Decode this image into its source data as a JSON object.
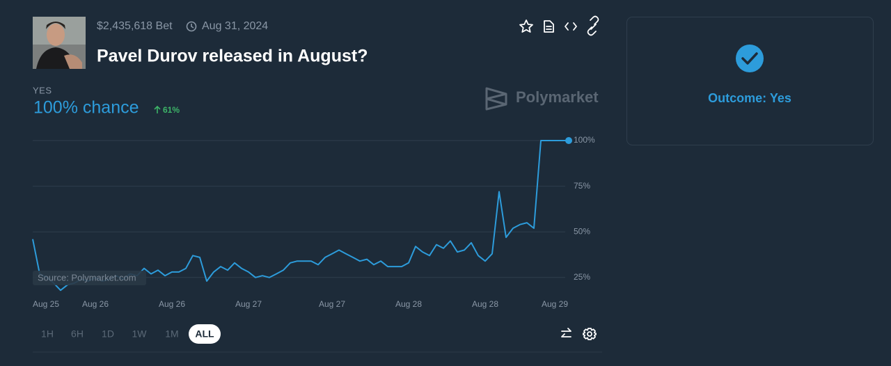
{
  "header": {
    "bet": "$2,435,618 Bet",
    "date": "Aug 31, 2024",
    "title": "Pavel Durov released in August?"
  },
  "chart_data": {
    "type": "line",
    "outcome": "YES",
    "chance": "100% chance",
    "change": "61%",
    "watermark": "Polymarket",
    "source": "Source: Polymarket.com",
    "series": [
      {
        "name": "YES",
        "color": "#2d9cdb",
        "values": [
          46,
          27,
          25,
          22,
          18,
          21,
          22,
          24,
          23,
          25,
          23,
          24,
          26,
          24,
          27,
          26,
          30,
          27,
          29,
          26,
          28,
          28,
          30,
          37,
          36,
          23,
          28,
          31,
          29,
          33,
          30,
          28,
          25,
          26,
          25,
          27,
          29,
          33,
          34,
          34,
          34,
          32,
          36,
          38,
          40,
          38,
          36,
          34,
          35,
          32,
          34,
          31,
          31,
          31,
          33,
          42,
          39,
          37,
          43,
          41,
          45,
          39,
          40,
          44,
          37,
          34,
          38,
          72,
          47,
          52,
          54,
          55,
          52,
          100,
          100,
          100,
          100,
          100
        ]
      }
    ],
    "xlim": [
      0,
      77
    ],
    "xticks": [
      {
        "value": 2,
        "label": "Aug 25"
      },
      {
        "value": 9,
        "label": "Aug 26"
      },
      {
        "value": 20,
        "label": "Aug 26"
      },
      {
        "value": 31,
        "label": "Aug 27"
      },
      {
        "value": 43,
        "label": "Aug 27"
      },
      {
        "value": 54,
        "label": "Aug 28"
      },
      {
        "value": 65,
        "label": "Aug 28"
      },
      {
        "value": 75,
        "label": "Aug 29"
      }
    ],
    "ylim": [
      15,
      100
    ],
    "yticks": [
      {
        "value": 25,
        "label": "25%"
      },
      {
        "value": 50,
        "label": "50%"
      },
      {
        "value": 75,
        "label": "75%"
      },
      {
        "value": 100,
        "label": "100%"
      }
    ],
    "grid": true
  },
  "range_buttons": [
    "1H",
    "6H",
    "1D",
    "1W",
    "1M",
    "ALL"
  ],
  "selected_range": "ALL",
  "outcome_panel": {
    "text": "Outcome: Yes"
  }
}
